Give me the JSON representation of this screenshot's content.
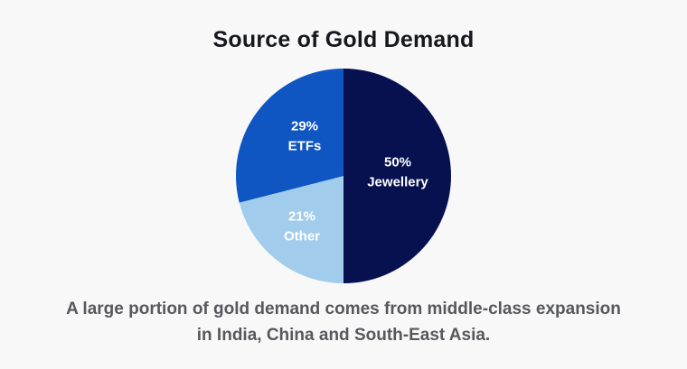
{
  "page": {
    "background": "#f8f8f9"
  },
  "caption": {
    "line1": "A large portion of gold demand comes from middle-class expansion",
    "line2": "in India, China and South-East Asia."
  },
  "chart_data": {
    "type": "pie",
    "title": "Source of Gold Demand",
    "direction": "clockwise",
    "start_angle_deg": 0,
    "legend": "none",
    "slices": [
      {
        "name": "Jewellery",
        "value": 50,
        "pct_label": "50%",
        "color": "#071150",
        "label_color": "#ffffff"
      },
      {
        "name": "Other",
        "value": 21,
        "pct_label": "21%",
        "color": "#a2cceb",
        "label_color": "#ffffff"
      },
      {
        "name": "ETFs",
        "value": 29,
        "pct_label": "29%",
        "color": "#0f56c3",
        "label_color": "#ffffff"
      }
    ],
    "annotation": "A large portion of gold demand comes from middle-class expansion in India, China and South-East Asia."
  }
}
